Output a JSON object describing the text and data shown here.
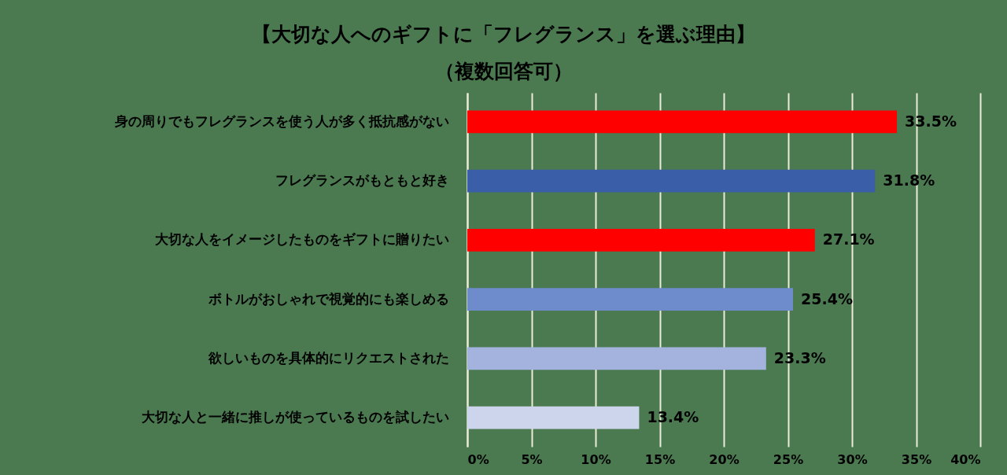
{
  "chart_data": {
    "type": "bar",
    "orientation": "horizontal",
    "title": "【大切な人へのギフトに「フレグランス」を選ぶ理由】",
    "subtitle": "（複数回答可）",
    "categories": [
      "身の周りでもフレグランスを使う人が多く抵抗感がない",
      "フレグランスがもともと好き",
      "大切な人をイメージしたものをギフトに贈りたい",
      "ボトルがおしゃれで視覚的にも楽しめる",
      "欲しいものを具体的にリクエストされた",
      "大切な人と一緒に推しが使っているものを試したい"
    ],
    "values": [
      33.5,
      31.8,
      27.1,
      25.4,
      23.3,
      13.4
    ],
    "value_labels": [
      "33.5%",
      "31.8%",
      "27.1%",
      "25.4%",
      "23.3%",
      "13.4%"
    ],
    "colors": [
      "#ff0000",
      "#3a5ea8",
      "#ff0000",
      "#6e8ccc",
      "#a3b3de",
      "#cdd5ec"
    ],
    "xlim": [
      0,
      40
    ],
    "xticks": [
      {
        "value": 0,
        "label": "0%"
      },
      {
        "value": 5,
        "label": "5%"
      },
      {
        "value": 10,
        "label": "10%"
      },
      {
        "value": 15,
        "label": "15%"
      },
      {
        "value": 20,
        "label": "20%"
      },
      {
        "value": 25,
        "label": "25%"
      },
      {
        "value": 30,
        "label": "30%"
      },
      {
        "value": 35,
        "label": "35%"
      },
      {
        "value": 40,
        "label": "40%"
      }
    ],
    "grid": "x",
    "legend": false
  }
}
